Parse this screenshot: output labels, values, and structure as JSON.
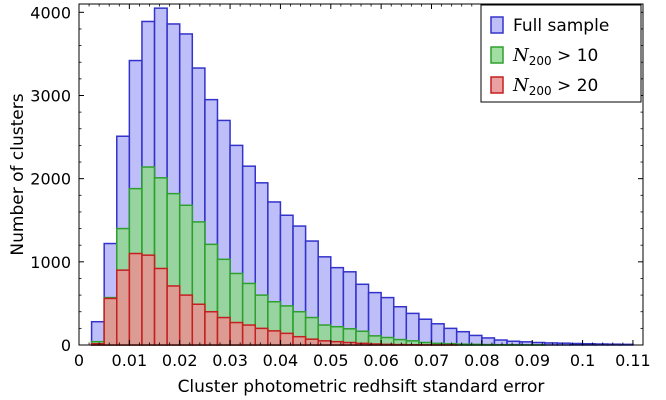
{
  "chart_data": {
    "type": "bar",
    "subtype": "overlaid-histogram",
    "xlabel": "Cluster photometric redhsift standard error",
    "ylabel": "Number of clusters",
    "xlim": [
      0,
      0.112
    ],
    "ylim": [
      0,
      4100
    ],
    "x_ticks": [
      "0",
      "0.01",
      "0.02",
      "0.03",
      "0.04",
      "0.05",
      "0.06",
      "0.07",
      "0.08",
      "0.09",
      "0.1",
      "0.11"
    ],
    "y_ticks": [
      "0",
      "1000",
      "2000",
      "3000",
      "4000"
    ],
    "bin_start": 0.0025,
    "bin_width": 0.0025,
    "legend_position": "top-right",
    "series": [
      {
        "name": "Full sample",
        "legend_label": {
          "prefix": "Full sample",
          "sub": "",
          "suffix": ""
        },
        "fill": "#b3b3f7",
        "edge": "#3333cc",
        "values": [
          280,
          1220,
          2510,
          3420,
          3890,
          4050,
          3860,
          3740,
          3330,
          2950,
          2700,
          2400,
          2150,
          1950,
          1720,
          1560,
          1430,
          1250,
          1060,
          930,
          880,
          730,
          630,
          570,
          460,
          380,
          310,
          255,
          200,
          160,
          115,
          85,
          60,
          45,
          38,
          30,
          25,
          22,
          18,
          15,
          12,
          10,
          8
        ]
      },
      {
        "name": "N200 > 10",
        "legend_label": {
          "prefix": "N",
          "sub": "200",
          "suffix": " > 10"
        },
        "fill": "#90d890",
        "edge": "#2ea02e",
        "values": [
          40,
          570,
          1400,
          1880,
          2140,
          2010,
          1820,
          1680,
          1480,
          1210,
          1030,
          860,
          740,
          600,
          520,
          470,
          400,
          330,
          240,
          220,
          195,
          165,
          110,
          90,
          65,
          50,
          30,
          20,
          15,
          10,
          8,
          5,
          3,
          2,
          1,
          1,
          0,
          0,
          0,
          0,
          0,
          0,
          0
        ]
      },
      {
        "name": "N200 > 20",
        "legend_label": {
          "prefix": "N",
          "sub": "200",
          "suffix": " > 20"
        },
        "fill": "#e89090",
        "edge": "#c42020",
        "values": [
          15,
          560,
          900,
          1100,
          1080,
          920,
          710,
          600,
          490,
          400,
          330,
          270,
          240,
          200,
          170,
          140,
          100,
          70,
          50,
          40,
          30,
          20,
          12,
          8,
          5,
          3,
          2,
          1,
          1,
          0,
          0,
          0,
          0,
          0,
          0,
          0,
          0,
          0,
          0,
          0,
          0,
          0,
          0
        ]
      }
    ]
  }
}
